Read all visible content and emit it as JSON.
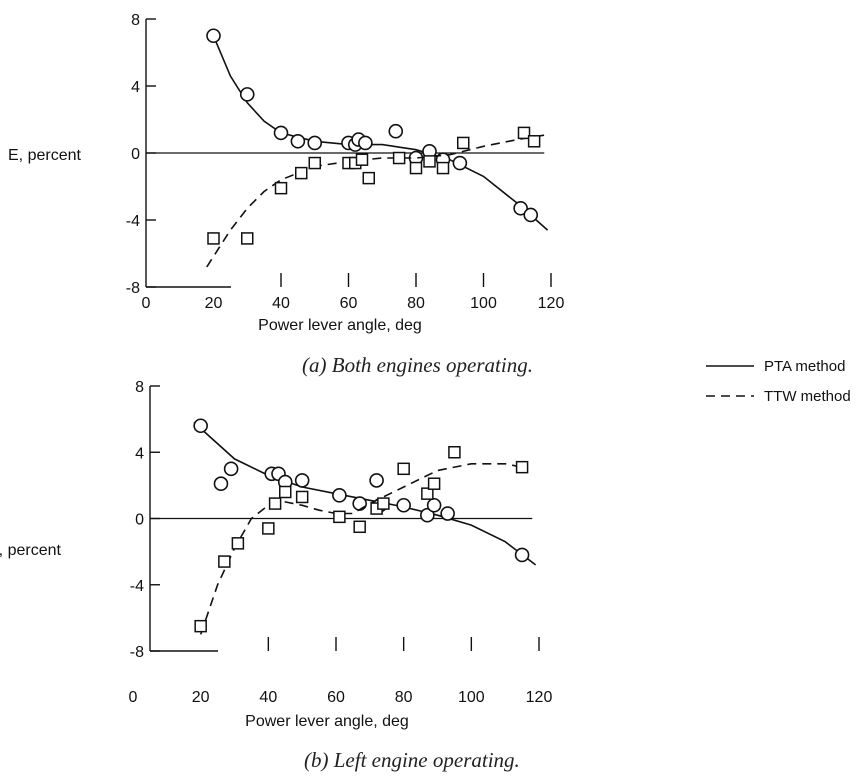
{
  "chart_data": [
    {
      "type": "scatter",
      "ylabel": "E, percent",
      "xlabel": "Power lever angle, deg",
      "caption": "(a)  Both engines operating.",
      "x_ticks": [
        "0",
        "20",
        "40",
        "60",
        "80",
        "100",
        "120"
      ],
      "y_ticks": [
        "8",
        "4",
        "0",
        "-4",
        "-8"
      ],
      "xlim": [
        0,
        120
      ],
      "ylim": [
        -8,
        8
      ],
      "grid": false,
      "series": [
        {
          "name": "PTA method",
          "marker": "circle",
          "points": [
            [
              20,
              7.0
            ],
            [
              30,
              3.5
            ],
            [
              40,
              1.2
            ],
            [
              45,
              0.7
            ],
            [
              50,
              0.6
            ],
            [
              60,
              0.6
            ],
            [
              62,
              0.5
            ],
            [
              63,
              0.8
            ],
            [
              65,
              0.6
            ],
            [
              74,
              1.3
            ],
            [
              80,
              -0.3
            ],
            [
              84,
              0.1
            ],
            [
              88,
              -0.4
            ],
            [
              93,
              -0.6
            ],
            [
              111,
              -3.3
            ],
            [
              114,
              -3.7
            ]
          ],
          "fit": [
            [
              20,
              7.0
            ],
            [
              25,
              4.6
            ],
            [
              30,
              3.0
            ],
            [
              35,
              1.9
            ],
            [
              40,
              1.2
            ],
            [
              50,
              0.7
            ],
            [
              60,
              0.5
            ],
            [
              70,
              0.5
            ],
            [
              80,
              0.2
            ],
            [
              90,
              -0.4
            ],
            [
              100,
              -1.4
            ],
            [
              110,
              -3.0
            ],
            [
              119,
              -4.6
            ]
          ]
        },
        {
          "name": "TTW method",
          "marker": "square",
          "points": [
            [
              20,
              -5.1
            ],
            [
              30,
              -5.1
            ],
            [
              40,
              -2.1
            ],
            [
              46,
              -1.2
            ],
            [
              50,
              -0.6
            ],
            [
              60,
              -0.6
            ],
            [
              62,
              -0.6
            ],
            [
              64,
              -0.4
            ],
            [
              66,
              -1.5
            ],
            [
              75,
              -0.3
            ],
            [
              80,
              -0.9
            ],
            [
              84,
              -0.5
            ],
            [
              88,
              -0.9
            ],
            [
              94,
              0.6
            ],
            [
              112,
              1.2
            ],
            [
              115,
              0.7
            ]
          ],
          "fit": [
            [
              18,
              -6.8
            ],
            [
              25,
              -4.6
            ],
            [
              30,
              -3.3
            ],
            [
              35,
              -2.3
            ],
            [
              40,
              -1.6
            ],
            [
              50,
              -0.8
            ],
            [
              60,
              -0.5
            ],
            [
              70,
              -0.3
            ],
            [
              80,
              -0.3
            ],
            [
              90,
              -0.1
            ],
            [
              100,
              0.4
            ],
            [
              110,
              0.8
            ],
            [
              119,
              1.1
            ]
          ]
        }
      ]
    },
    {
      "type": "scatter",
      "ylabel": "E, percent",
      "xlabel": "Power lever angle, deg",
      "caption": "(b)  Left engine operating.",
      "x_ticks": [
        "0",
        "20",
        "40",
        "60",
        "80",
        "100",
        "120"
      ],
      "y_ticks": [
        "8",
        "4",
        "0",
        "-4",
        "-8"
      ],
      "xlim": [
        0,
        120
      ],
      "ylim": [
        -8,
        8
      ],
      "grid": false,
      "series": [
        {
          "name": "PTA method",
          "marker": "circle",
          "points": [
            [
              20,
              5.6
            ],
            [
              26,
              2.1
            ],
            [
              29,
              3.0
            ],
            [
              41,
              2.7
            ],
            [
              43,
              2.7
            ],
            [
              45,
              2.2
            ],
            [
              50,
              2.3
            ],
            [
              61,
              1.4
            ],
            [
              67,
              0.9
            ],
            [
              72,
              2.3
            ],
            [
              73,
              0.8
            ],
            [
              80,
              0.8
            ],
            [
              87,
              0.2
            ],
            [
              89,
              0.8
            ],
            [
              93,
              0.3
            ],
            [
              115,
              -2.2
            ]
          ],
          "fit": [
            [
              18,
              5.8
            ],
            [
              30,
              3.6
            ],
            [
              40,
              2.6
            ],
            [
              50,
              1.9
            ],
            [
              60,
              1.5
            ],
            [
              70,
              1.1
            ],
            [
              80,
              0.7
            ],
            [
              90,
              0.2
            ],
            [
              100,
              -0.4
            ],
            [
              110,
              -1.4
            ],
            [
              119,
              -2.8
            ]
          ]
        },
        {
          "name": "TTW method",
          "marker": "square",
          "points": [
            [
              20,
              -6.5
            ],
            [
              27,
              -2.6
            ],
            [
              31,
              -1.5
            ],
            [
              40,
              -0.6
            ],
            [
              42,
              0.9
            ],
            [
              45,
              1.6
            ],
            [
              50,
              1.3
            ],
            [
              61,
              0.1
            ],
            [
              67,
              -0.5
            ],
            [
              72,
              0.6
            ],
            [
              74,
              0.9
            ],
            [
              80,
              3.0
            ],
            [
              87,
              1.5
            ],
            [
              89,
              2.1
            ],
            [
              95,
              4.0
            ],
            [
              115,
              3.1
            ]
          ],
          "fit": [
            [
              20,
              -7.0
            ],
            [
              25,
              -4.0
            ],
            [
              30,
              -1.8
            ],
            [
              35,
              0.0
            ],
            [
              40,
              0.8
            ],
            [
              45,
              1.0
            ],
            [
              50,
              0.8
            ],
            [
              55,
              0.5
            ],
            [
              60,
              0.3
            ],
            [
              65,
              0.3
            ],
            [
              70,
              0.9
            ],
            [
              80,
              1.9
            ],
            [
              90,
              2.9
            ],
            [
              100,
              3.3
            ],
            [
              110,
              3.3
            ],
            [
              115,
              3.1
            ]
          ]
        }
      ]
    }
  ],
  "legend": {
    "placement": "right",
    "items": [
      {
        "label": "PTA method",
        "style": "solid"
      },
      {
        "label": "TTW method",
        "style": "dashed"
      }
    ]
  }
}
